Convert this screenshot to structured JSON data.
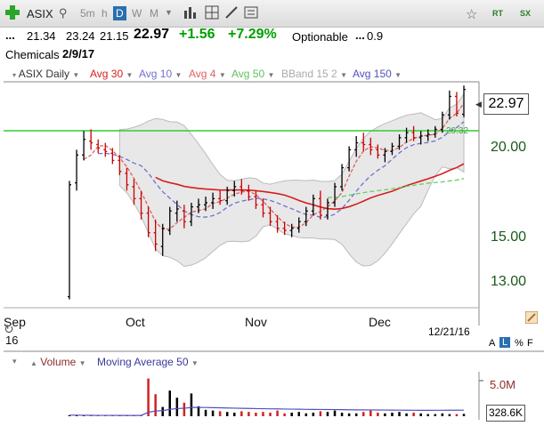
{
  "toolbar": {
    "symbol": "ASIX",
    "timeframes": [
      {
        "label": "5m",
        "selected": false
      },
      {
        "label": "h",
        "selected": false
      },
      {
        "label": "D",
        "selected": true
      },
      {
        "label": "W",
        "selected": false
      },
      {
        "label": "M",
        "selected": false
      }
    ],
    "right_labels": {
      "rt": "RT",
      "sx": "SX"
    }
  },
  "quote": {
    "prefix": "...",
    "open": "21.34",
    "high": "23.24",
    "low": "21.15",
    "last": "22.97",
    "change": "+1.56",
    "change_pct": "+7.29%",
    "optionable": "Optionable",
    "ellipsis": "...",
    "beta": "0.9",
    "industry": "Chemicals",
    "date": "2/9/17"
  },
  "legend": {
    "symbol_label": "ASIX Daily",
    "avg30": "Avg 30",
    "avg10": "Avg 10",
    "avg4": "Avg 4",
    "avg50": "Avg 50",
    "bband": "BBand 15 2",
    "avg150": "Avg 150"
  },
  "colors": {
    "up": "#00a000",
    "avg30": "#d42020",
    "avg10": "#7070d0",
    "avg4": "#e06060",
    "avg50": "#60d060",
    "bband": "#bbbbbb",
    "avg150": "#5050c0",
    "resistance": "#33cc33"
  },
  "price_axis": {
    "last_box": "22.97",
    "ticks": [
      "20.00",
      "15.00",
      "13.00"
    ],
    "resistance_label": "20.32"
  },
  "time_axis": {
    "labels": [
      "Sep",
      "16",
      "Oct",
      "Nov",
      "Dec"
    ],
    "end_date": "12/21/16",
    "scale_labels": {
      "a": "A",
      "l": "L",
      "percent": "%",
      "f": "F"
    }
  },
  "volume": {
    "label": "Volume",
    "ma_label": "Moving Average 50",
    "tick": "5.0M",
    "last_box": "328.6K"
  },
  "chart_data": {
    "type": "bar",
    "title": "ASIX Daily",
    "ylim": [
      12,
      23.5
    ],
    "log_scale": true,
    "resistance": 20.32,
    "grid": false,
    "ohlc": [
      [
        12.4,
        17.5,
        12.3,
        17.3
      ],
      [
        17.4,
        19.2,
        17.0,
        18.9
      ],
      [
        18.9,
        20.3,
        18.6,
        19.8
      ],
      [
        19.7,
        20.4,
        19.2,
        19.6
      ],
      [
        19.5,
        19.8,
        19.0,
        19.3
      ],
      [
        19.2,
        19.6,
        18.8,
        19.1
      ],
      [
        19.0,
        19.3,
        18.4,
        18.6
      ],
      [
        18.6,
        18.9,
        17.8,
        18.0
      ],
      [
        17.9,
        18.2,
        17.0,
        17.3
      ],
      [
        17.2,
        17.6,
        16.3,
        16.6
      ],
      [
        16.6,
        17.0,
        15.6,
        15.9
      ],
      [
        15.9,
        16.2,
        14.8,
        15.0
      ],
      [
        15.0,
        15.6,
        14.2,
        14.5
      ],
      [
        14.4,
        15.4,
        14.0,
        15.2
      ],
      [
        15.1,
        16.2,
        14.9,
        16.0
      ],
      [
        15.9,
        16.5,
        15.5,
        16.1
      ],
      [
        16.0,
        16.3,
        15.2,
        15.5
      ],
      [
        15.5,
        16.4,
        15.3,
        16.2
      ],
      [
        16.2,
        16.6,
        15.9,
        16.3
      ],
      [
        16.3,
        16.7,
        16.0,
        16.4
      ],
      [
        16.4,
        16.9,
        16.1,
        16.6
      ],
      [
        16.6,
        17.0,
        16.3,
        16.5
      ],
      [
        16.5,
        17.2,
        16.3,
        17.0
      ],
      [
        17.0,
        17.5,
        16.7,
        17.2
      ],
      [
        17.2,
        17.6,
        16.8,
        17.0
      ],
      [
        17.0,
        17.3,
        16.5,
        16.7
      ],
      [
        16.7,
        17.0,
        16.1,
        16.3
      ],
      [
        16.3,
        16.6,
        15.7,
        15.9
      ],
      [
        15.9,
        16.2,
        15.3,
        15.5
      ],
      [
        15.5,
        15.8,
        15.0,
        15.2
      ],
      [
        15.2,
        15.5,
        14.9,
        15.1
      ],
      [
        15.1,
        15.4,
        14.8,
        15.2
      ],
      [
        15.2,
        15.7,
        15.0,
        15.5
      ],
      [
        15.5,
        16.2,
        15.3,
        16.0
      ],
      [
        16.0,
        16.8,
        15.8,
        16.6
      ],
      [
        16.6,
        17.0,
        15.6,
        15.8
      ],
      [
        15.8,
        16.6,
        15.6,
        16.4
      ],
      [
        16.4,
        17.4,
        16.2,
        17.2
      ],
      [
        17.2,
        18.4,
        17.0,
        18.2
      ],
      [
        18.2,
        19.4,
        18.0,
        19.2
      ],
      [
        19.2,
        20.0,
        18.8,
        19.6
      ],
      [
        19.6,
        20.2,
        19.1,
        19.5
      ],
      [
        19.5,
        19.9,
        18.9,
        19.2
      ],
      [
        19.2,
        19.5,
        18.7,
        18.9
      ],
      [
        18.9,
        19.3,
        18.5,
        19.1
      ],
      [
        19.1,
        19.6,
        18.9,
        19.4
      ],
      [
        19.4,
        20.1,
        19.2,
        19.9
      ],
      [
        19.9,
        20.5,
        19.6,
        20.2
      ],
      [
        20.2,
        20.6,
        19.7,
        19.9
      ],
      [
        19.9,
        20.3,
        19.5,
        20.0
      ],
      [
        20.0,
        20.4,
        19.7,
        20.1
      ],
      [
        20.1,
        20.6,
        19.9,
        20.4
      ],
      [
        20.4,
        21.5,
        20.2,
        21.3
      ],
      [
        21.3,
        22.9,
        21.0,
        22.5
      ],
      [
        22.5,
        22.8,
        21.2,
        21.4
      ],
      [
        21.34,
        23.24,
        21.15,
        22.97
      ]
    ],
    "volume": [
      0.15,
      0.15,
      0.1,
      0.1,
      0.1,
      0.1,
      0.1,
      0.1,
      0.1,
      0.1,
      0.15,
      5.3,
      3.1,
      1.3,
      3.6,
      2.6,
      1.9,
      3.2,
      1.4,
      0.9,
      0.8,
      0.7,
      0.6,
      0.5,
      0.7,
      0.6,
      0.5,
      0.6,
      0.5,
      0.8,
      0.4,
      0.5,
      0.6,
      0.4,
      0.5,
      0.7,
      0.6,
      0.8,
      0.5,
      0.4,
      0.4,
      0.6,
      0.8,
      0.5,
      0.4,
      0.5,
      0.6,
      0.4,
      0.5,
      0.4,
      0.3,
      0.3,
      0.4,
      0.3,
      0.3,
      0.33
    ]
  }
}
